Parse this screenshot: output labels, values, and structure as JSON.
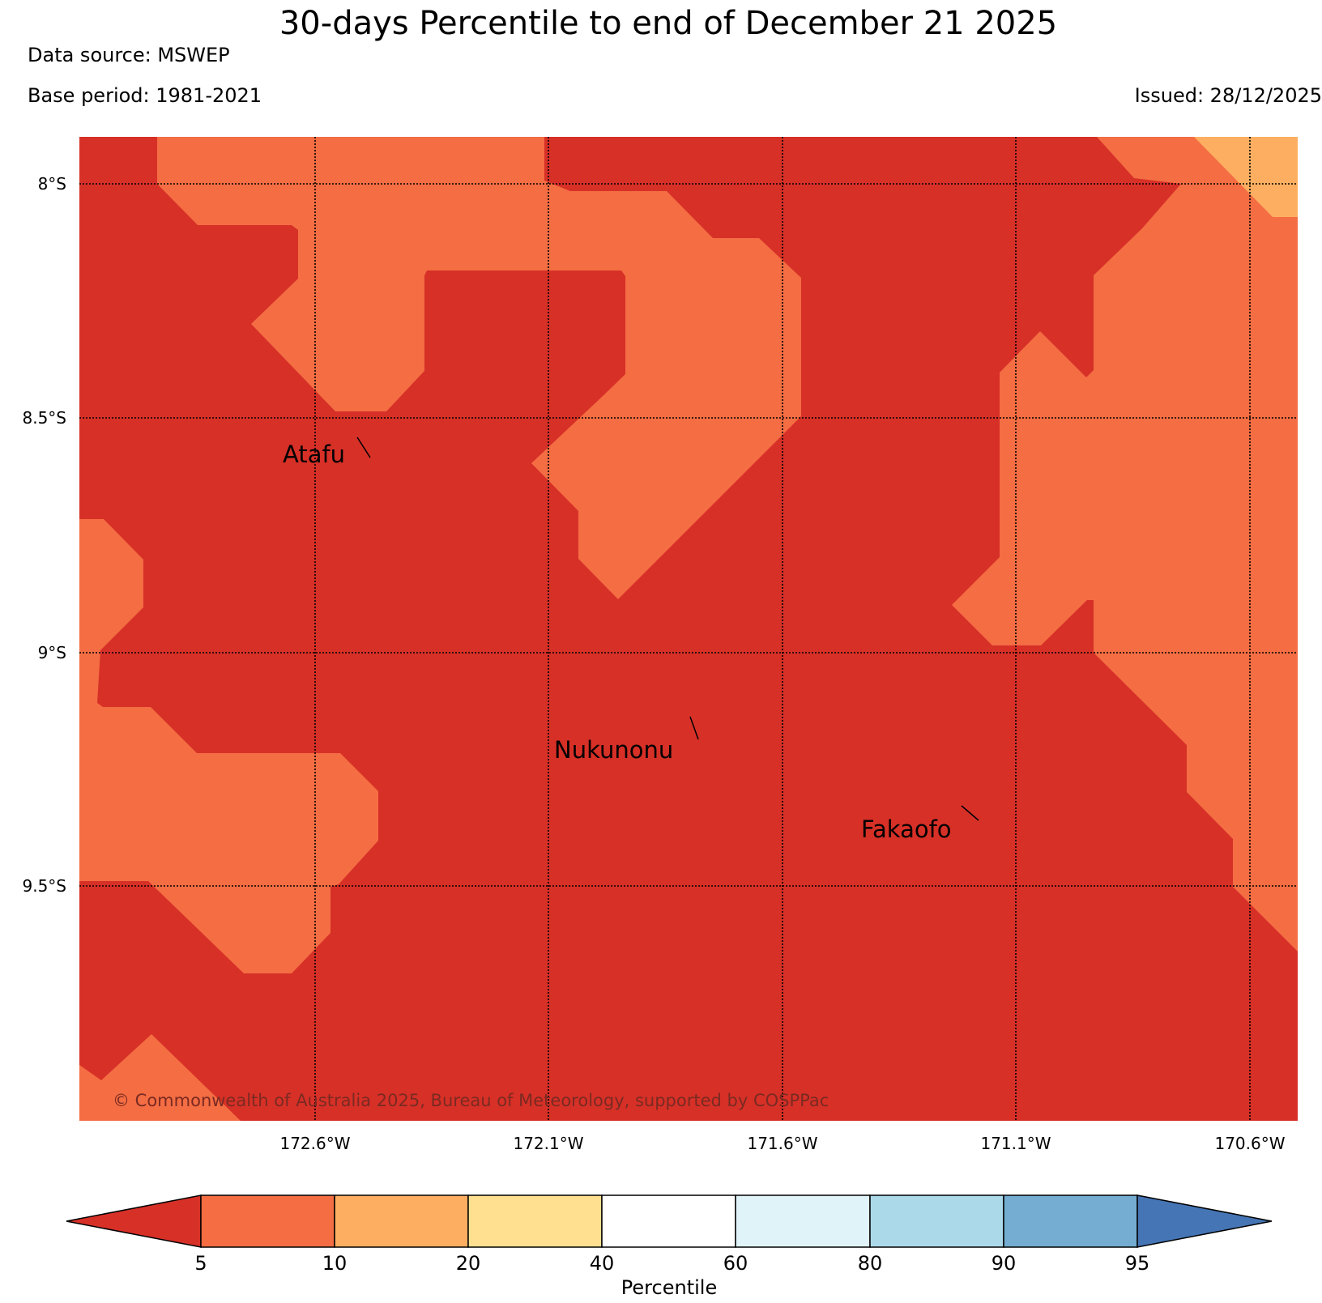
{
  "header": {
    "title": "30-days Percentile to end of December 21 2025",
    "data_source": "Data source: MSWEP",
    "base_period": "Base period: 1981-2021",
    "issued": "Issued: 28/12/2025"
  },
  "map": {
    "lat_labels": [
      "8°S",
      "8.5°S",
      "9°S",
      "9.5°S"
    ],
    "lon_labels": [
      "172.6°W",
      "172.1°W",
      "171.6°W",
      "171.1°W",
      "170.6°W"
    ],
    "places": [
      "Atafu",
      "Nukunonu",
      "Fakaofo"
    ],
    "copyright": "© Commonwealth of Australia 2025, Bureau of Meteorology, supported by COSPPac"
  },
  "colorbar": {
    "label": "Percentile",
    "ticks": [
      "5",
      "10",
      "20",
      "40",
      "60",
      "80",
      "90",
      "95"
    ],
    "colors": {
      "below_5": "#d73027",
      "5_10": "#f46d43",
      "10_20": "#fdae61",
      "20_40": "#fee090",
      "40_60": "#ffffff",
      "60_80": "#e0f3f8",
      "80_90": "#abd9e9",
      "90_95": "#74add1",
      "above_95": "#4575b4"
    }
  }
}
